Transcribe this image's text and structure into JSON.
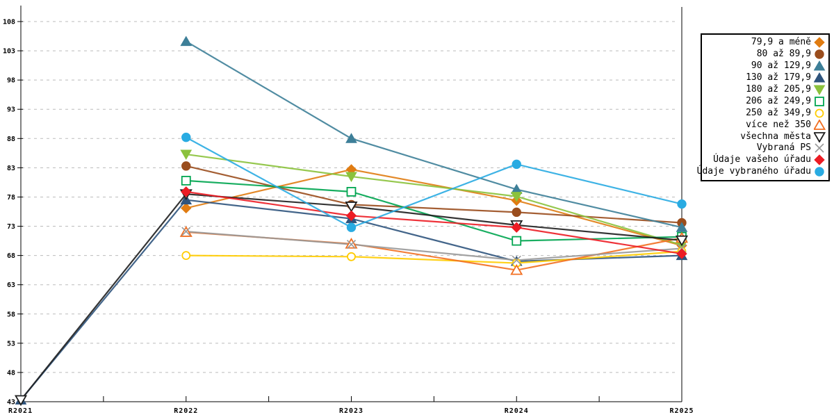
{
  "chart_data": {
    "type": "line",
    "title": "",
    "xlabel": "",
    "ylabel": "",
    "x_categories": [
      "R2021",
      "R2022",
      "R2023",
      "R2024",
      "R2025"
    ],
    "y_axis": {
      "min": 43,
      "max": 108,
      "tick_step": 5,
      "ticks": [
        43,
        48,
        53,
        58,
        63,
        68,
        73,
        78,
        83,
        88,
        93,
        98,
        103,
        108
      ]
    },
    "grid": "horizontal-dashed",
    "grid_color": "#bbbbbb",
    "axis_color": "#000000",
    "legend_position": "right",
    "series": [
      {
        "name": "79,9 a méně",
        "color": "#E07C12",
        "marker": "diamond",
        "hollow": false,
        "values": [
          null,
          76.1,
          82.7,
          77.4,
          69.7
        ]
      },
      {
        "name": "80 až 89,9",
        "color": "#9A4D1D",
        "marker": "circle",
        "hollow": false,
        "values": [
          null,
          83.3,
          76.7,
          75.4,
          73.6
        ]
      },
      {
        "name": "90 až 129,9",
        "color": "#3D7F98",
        "marker": "triangle-up",
        "hollow": false,
        "values": [
          null,
          104.6,
          88.0,
          79.3,
          72.8
        ]
      },
      {
        "name": "130 až 179,9",
        "color": "#2F547D",
        "marker": "triangle-up",
        "hollow": false,
        "values": [
          43.3,
          77.5,
          74.3,
          67.0,
          68.0
        ]
      },
      {
        "name": "180 až 205,9",
        "color": "#8BC23C",
        "marker": "triangle-down",
        "hollow": false,
        "values": [
          null,
          85.3,
          81.5,
          78.1,
          69.8
        ]
      },
      {
        "name": "206 až 249,9",
        "color": "#00A550",
        "marker": "square",
        "hollow": true,
        "values": [
          null,
          80.8,
          78.9,
          70.5,
          71.2
        ]
      },
      {
        "name": "250 až 349,9",
        "color": "#FFCC00",
        "marker": "circle",
        "hollow": true,
        "values": [
          null,
          68.0,
          67.8,
          66.7,
          68.7
        ]
      },
      {
        "name": "více než 350",
        "color": "#F26F21",
        "marker": "triangle-up",
        "hollow": true,
        "values": [
          null,
          72.0,
          70.0,
          65.5,
          71.0
        ]
      },
      {
        "name": "všechna města",
        "color": "#1F1F1F",
        "marker": "triangle-down",
        "hollow": true,
        "values": [
          43.3,
          78.5,
          76.4,
          73.2,
          70.6
        ]
      },
      {
        "name": "Vybraná PS",
        "color": "#999999",
        "marker": "x",
        "hollow": true,
        "values": [
          null,
          72.1,
          69.9,
          67.2,
          69.2
        ]
      },
      {
        "name": "Údaje vašeho úřadu",
        "color": "#EC1C24",
        "marker": "diamond",
        "hollow": false,
        "values": [
          null,
          78.9,
          74.8,
          72.8,
          68.3
        ]
      },
      {
        "name": "Údaje vybraného úřadu",
        "color": "#29ABE2",
        "marker": "circle",
        "hollow": false,
        "values": [
          null,
          88.2,
          72.8,
          83.6,
          76.8
        ]
      }
    ]
  }
}
